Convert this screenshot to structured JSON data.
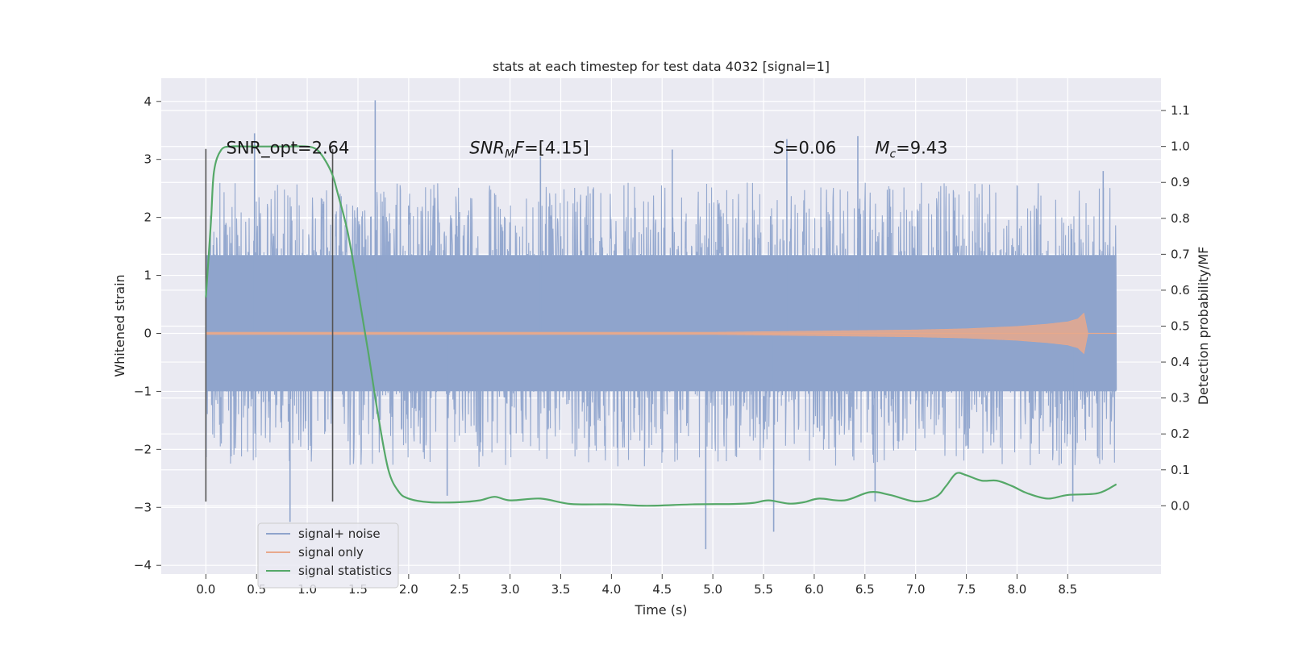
{
  "chart_data": {
    "type": "line",
    "title": "stats at each timestep for test data 4032 [signal=1]",
    "xlabel": "Time (s)",
    "ylabel_left": "Whitened strain",
    "ylabel_right": "Detection probability/MF",
    "xlim": [
      -0.44,
      9.42
    ],
    "ylim_left": [
      -4.15,
      4.4
    ],
    "ylim_right": [
      -0.19,
      1.19
    ],
    "x_ticks": [
      "0.0",
      "0.5",
      "1.0",
      "1.5",
      "2.0",
      "2.5",
      "3.0",
      "3.5",
      "4.0",
      "4.5",
      "5.0",
      "5.5",
      "6.0",
      "6.5",
      "7.0",
      "7.5",
      "8.0",
      "8.5"
    ],
    "y_left_ticks": [
      "−4",
      "−3",
      "−2",
      "−1",
      "0",
      "1",
      "2",
      "3",
      "4"
    ],
    "y_right_ticks": [
      "0.0",
      "0.1",
      "0.2",
      "0.3",
      "0.4",
      "0.5",
      "0.6",
      "0.7",
      "0.8",
      "0.9",
      "1.0",
      "1.1"
    ],
    "legend": {
      "position": "lower left",
      "entries": [
        {
          "label": "signal+ noise",
          "color": "#8fa4cc"
        },
        {
          "label": "signal only",
          "color": "#e8a98c"
        },
        {
          "label": "signal statistics",
          "color": "#55a868"
        }
      ]
    },
    "annotations": [
      {
        "text": "SNR_opt=2.64",
        "x": 0.2,
        "y": 3.1
      },
      {
        "text": "SNR_MF=[4.15]",
        "x": 2.6,
        "y": 3.1
      },
      {
        "text": "S=0.06",
        "x": 5.6,
        "y": 3.1
      },
      {
        "text": "M_c=9.43",
        "x": 6.6,
        "y": 3.1
      }
    ],
    "vertical_markers": [
      {
        "x": 0.0,
        "y_range": [
          -2.9,
          3.18
        ]
      },
      {
        "x": 1.25,
        "y_range": [
          -2.9,
          3.18
        ]
      }
    ],
    "series": [
      {
        "name": "signal+ noise",
        "axis": "left",
        "x_range": [
          0.0,
          8.98
        ],
        "core_band": [
          -1.0,
          1.35
        ],
        "noise_extent": [
          -2.3,
          2.6
        ],
        "notable_spikes": [
          {
            "x": 1.67,
            "y": 4.02
          },
          {
            "x": 4.93,
            "y": -3.72
          },
          {
            "x": 0.48,
            "y": 3.45
          },
          {
            "x": 0.83,
            "y": -3.25
          },
          {
            "x": 5.6,
            "y": -3.42
          },
          {
            "x": 6.43,
            "y": 3.4
          },
          {
            "x": 5.73,
            "y": 3.35
          },
          {
            "x": 4.6,
            "y": 3.17
          },
          {
            "x": 3.3,
            "y": 3.05
          },
          {
            "x": 8.55,
            "y": -2.9
          },
          {
            "x": 6.6,
            "y": -2.9
          },
          {
            "x": 2.38,
            "y": -2.8
          },
          {
            "x": 8.85,
            "y": 2.8
          }
        ]
      },
      {
        "name": "signal only",
        "axis": "left",
        "x": [
          0.0,
          5.0,
          6.0,
          7.0,
          7.5,
          8.0,
          8.3,
          8.5,
          8.6,
          8.66,
          8.7,
          8.98
        ],
        "amplitude": [
          0.02,
          0.02,
          0.04,
          0.06,
          0.08,
          0.12,
          0.16,
          0.2,
          0.25,
          0.35,
          0.0,
          0.0
        ]
      },
      {
        "name": "signal statistics",
        "axis": "right",
        "x": [
          0.0,
          0.05,
          0.08,
          0.15,
          0.25,
          0.4,
          0.6,
          0.8,
          1.0,
          1.1,
          1.18,
          1.25,
          1.3,
          1.4,
          1.5,
          1.6,
          1.7,
          1.8,
          1.9,
          2.0,
          2.2,
          2.5,
          2.7,
          2.85,
          3.0,
          3.3,
          3.6,
          4.0,
          4.35,
          4.8,
          5.2,
          5.4,
          5.55,
          5.75,
          5.9,
          6.05,
          6.3,
          6.55,
          6.75,
          7.0,
          7.2,
          7.3,
          7.4,
          7.5,
          7.65,
          7.8,
          7.95,
          8.1,
          8.3,
          8.5,
          8.8,
          8.98
        ],
        "y": [
          0.58,
          0.79,
          0.93,
          0.99,
          1.0,
          1.0,
          1.0,
          1.0,
          1.0,
          0.99,
          0.96,
          0.92,
          0.87,
          0.76,
          0.6,
          0.43,
          0.25,
          0.1,
          0.04,
          0.02,
          0.01,
          0.01,
          0.015,
          0.025,
          0.015,
          0.02,
          0.005,
          0.004,
          0.0,
          0.004,
          0.005,
          0.008,
          0.015,
          0.006,
          0.01,
          0.02,
          0.015,
          0.038,
          0.03,
          0.012,
          0.025,
          0.055,
          0.09,
          0.085,
          0.07,
          0.07,
          0.055,
          0.035,
          0.02,
          0.03,
          0.035,
          0.06
        ]
      }
    ]
  }
}
